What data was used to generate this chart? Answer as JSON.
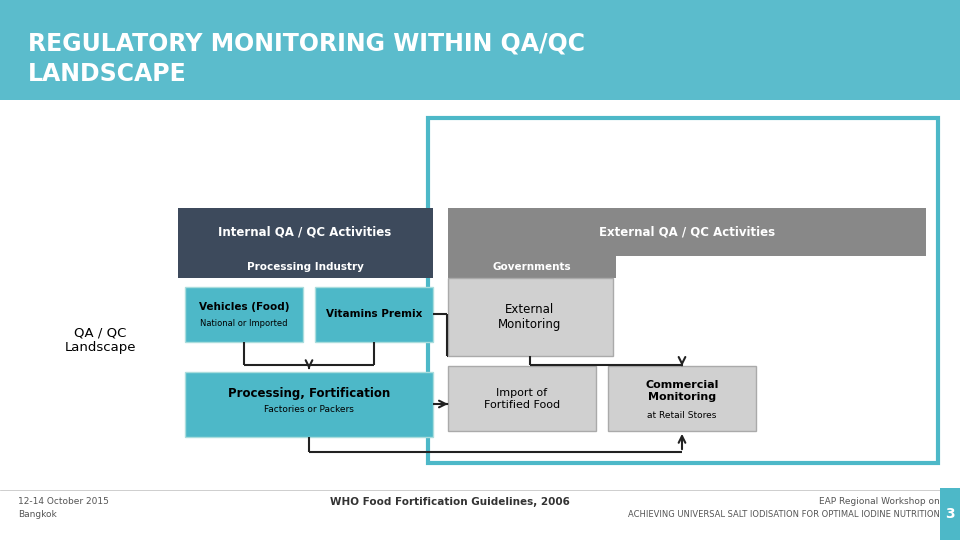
{
  "title_line1": "REGULATORY MONITORING WITHIN QA/QC",
  "title_line2": "LANDSCAPE",
  "title_bg": "#5bbccc",
  "title_color": "#ffffff",
  "bg_color": "#ffffff",
  "footer_left1": "12-14 October 2015",
  "footer_left2": "Bangkok",
  "footer_center": "WHO Food Fortification Guidelines, 2006",
  "footer_right1": "EAP Regional Workshop on",
  "footer_right2": "ACHIEVING UNIVERSAL SALT IODISATION FOR OPTIMAL IODINE NUTRITION",
  "footer_page": "3",
  "teal": "#4db8c8",
  "dark_header": "#3d4a5c",
  "gray_header": "#888888",
  "gray_light": "#d0d0d0",
  "outer_box_color": "#4db8c8",
  "arrow_color": "#222222",
  "label_qaqc": "QA / QC\nLandscape"
}
